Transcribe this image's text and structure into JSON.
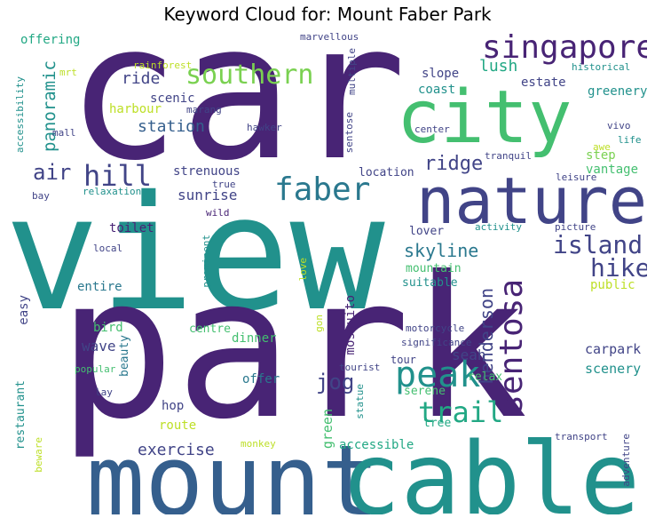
{
  "title": "Keyword Cloud for: Mount Faber Park",
  "colors": {
    "purple": "#482475",
    "indigo": "#414487",
    "blue": "#355f8d",
    "teal": "#2a788e",
    "sea": "#21918c",
    "green": "#22a884",
    "mint": "#44bf70",
    "lime": "#7ad151",
    "yellow": "#bddf26"
  },
  "words": {
    "car": "car",
    "view": "view",
    "park": "park",
    "mount": "mount",
    "cable": "cable",
    "city": "city",
    "nature": "nature",
    "singapore": "singapore",
    "faber": "faber",
    "peak": "peak",
    "sentosa": "sentosa",
    "hike": "hike",
    "island": "island",
    "trail": "trail",
    "hill": "hill",
    "southern": "southern",
    "air": "air",
    "jog": "jog",
    "ridge": "ridge",
    "henderson": "henderson",
    "skyline": "skyline",
    "lush": "lush",
    "panoramic": "panoramic",
    "station": "station",
    "ride": "ride",
    "exercise": "exercise",
    "sunrise": "sunrise",
    "strenuous": "strenuous",
    "scenic": "scenic",
    "harbour": "harbour",
    "offering": "offering",
    "slope": "slope",
    "coast": "coast",
    "estate": "estate",
    "greenery": "greenery",
    "step": "step",
    "vantage": "vantage",
    "location": "location",
    "seah": "seah",
    "carpark": "carpark",
    "scenery": "scenery",
    "wave": "wave",
    "toilet": "toilet",
    "mountain": "mountain",
    "suitable": "suitable",
    "lover": "lover",
    "public": "public",
    "entire": "entire",
    "bird": "bird",
    "beauty": "beauty",
    "centre": "centre",
    "dinner": "dinner",
    "offer": "offer",
    "hop": "hop",
    "route": "route",
    "green": "green",
    "mosquito": "mosquito",
    "restaurant": "restaurant",
    "easy": "easy",
    "serene": "serene",
    "relax": "relax",
    "tour": "tour",
    "tree": "tree",
    "accessible": "accessible",
    "motorcycle": "motorcycle",
    "significance": "significance",
    "tourist": "tourist",
    "statue": "statue",
    "gon": "gon",
    "love": "love",
    "prominent": "prominent",
    "activity": "activity",
    "picture": "picture",
    "wild": "wild",
    "true": "true",
    "leisure": "leisure",
    "relaxation": "relaxation",
    "bay": "bay",
    "mall": "mall",
    "local": "local",
    "popular": "popular",
    "lay": "lay",
    "beware": "beware",
    "monkey": "monkey",
    "transport": "transport",
    "adventure": "adventure",
    "accessibility": "accessibility",
    "mrt": "mrt",
    "rainforest": "rainforest",
    "marang": "marang",
    "marvellous": "marvellous",
    "multiple": "multiple",
    "sentose": "sentose",
    "hawker": "hawker",
    "center": "center",
    "tranquil": "tranquil",
    "historical": "historical",
    "vivo": "vivo",
    "life": "life",
    "awe": "awe"
  }
}
